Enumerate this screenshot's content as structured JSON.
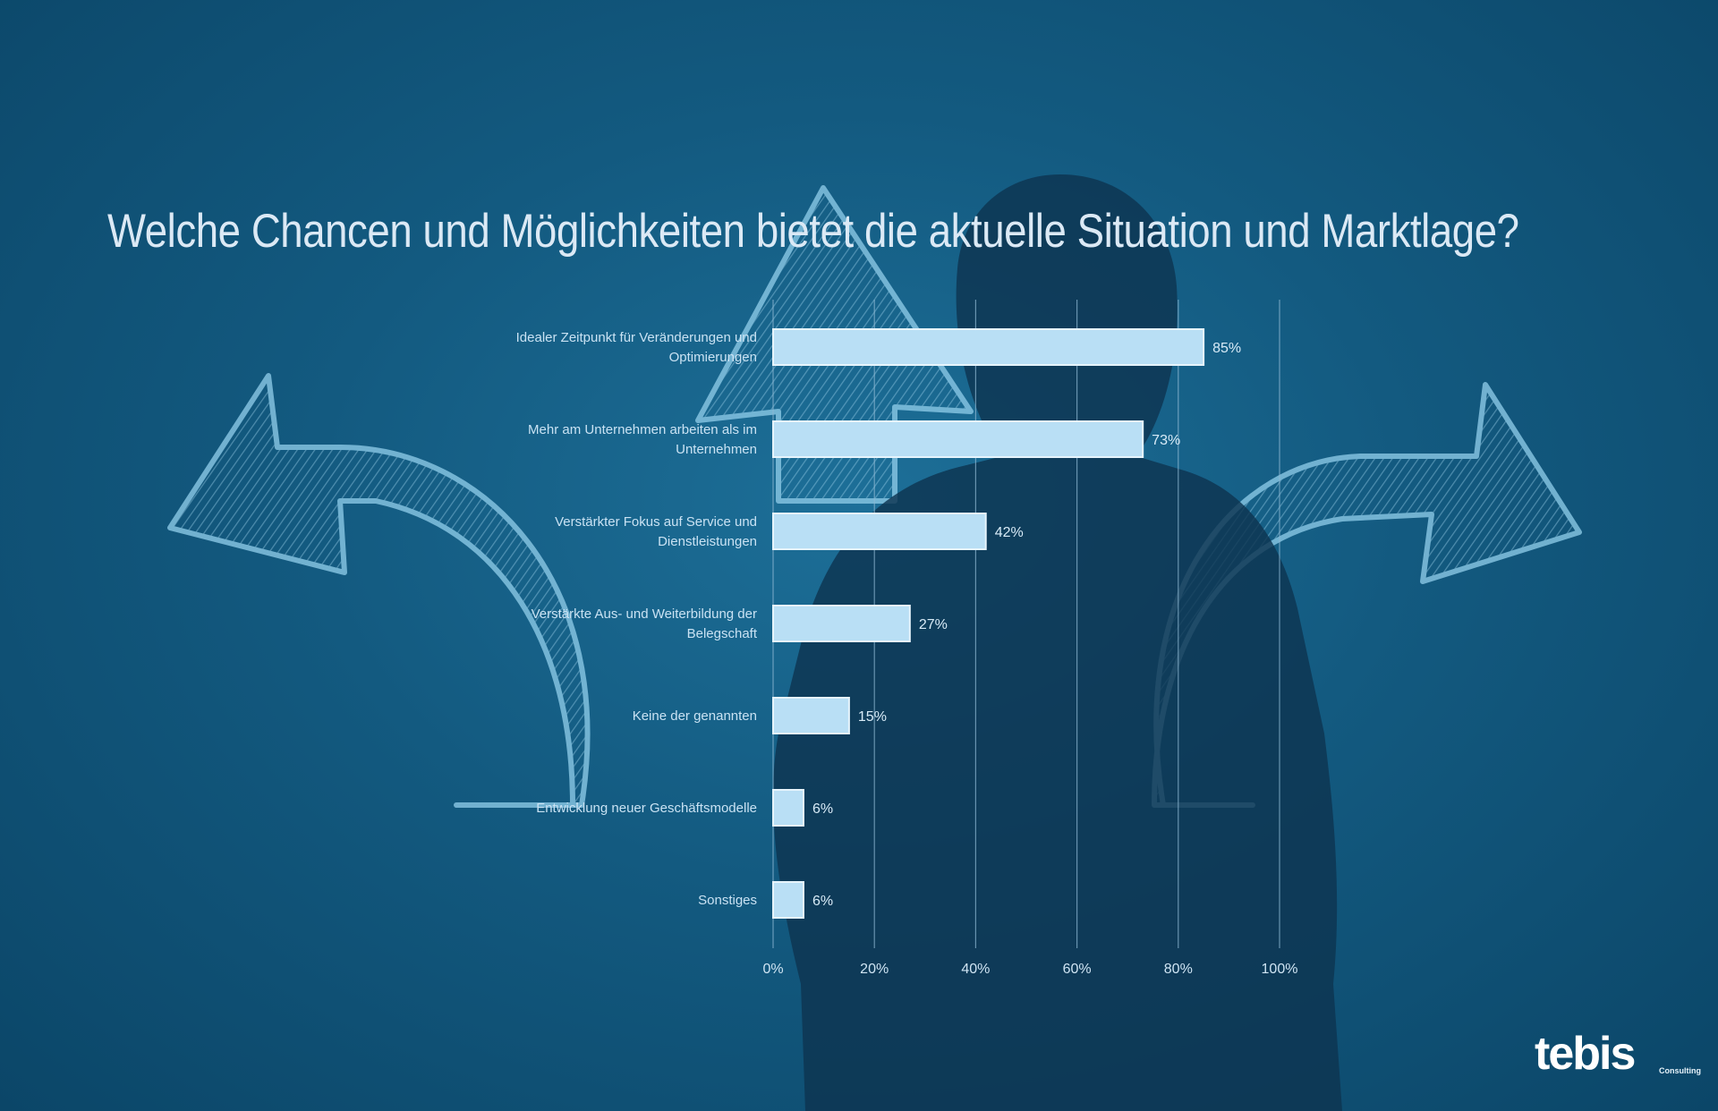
{
  "page": {
    "title": "Welche Chancen und Möglichkeiten bietet die aktuelle Situation und Marktlage?",
    "logo_text": "tebis",
    "logo_subtext": "Consulting"
  },
  "colors": {
    "bar_fill": "#b9dff5",
    "bar_stroke": "#e6f4fc",
    "grid": "#8fb9d4",
    "silhouette": "#0e3550",
    "chalk": "#7fc1df"
  },
  "chart_data": {
    "type": "bar",
    "orientation": "horizontal",
    "title": "Welche Chancen und Möglichkeiten bietet die aktuelle Situation und Marktlage?",
    "categories": [
      "Idealer Zeitpunkt für Veränderungen und Optimierungen",
      "Mehr am Unternehmen arbeiten als im Unternehmen",
      "Verstärkter Fokus auf Service und Dienstleistungen",
      "Verstärkte Aus- und Weiterbildung der Belegschaft",
      "Keine der genannten",
      "Entwicklung neuer Geschäftsmodelle",
      "Sonstiges"
    ],
    "values": [
      85,
      73,
      42,
      27,
      15,
      6,
      6
    ],
    "value_labels": [
      "85%",
      "73%",
      "42%",
      "27%",
      "15%",
      "6%",
      "6%"
    ],
    "xlim": [
      0,
      100
    ],
    "x_ticks": [
      "0%",
      "20%",
      "40%",
      "60%",
      "80%",
      "100%"
    ],
    "grid": "vertical",
    "xlabel": "",
    "ylabel": ""
  }
}
